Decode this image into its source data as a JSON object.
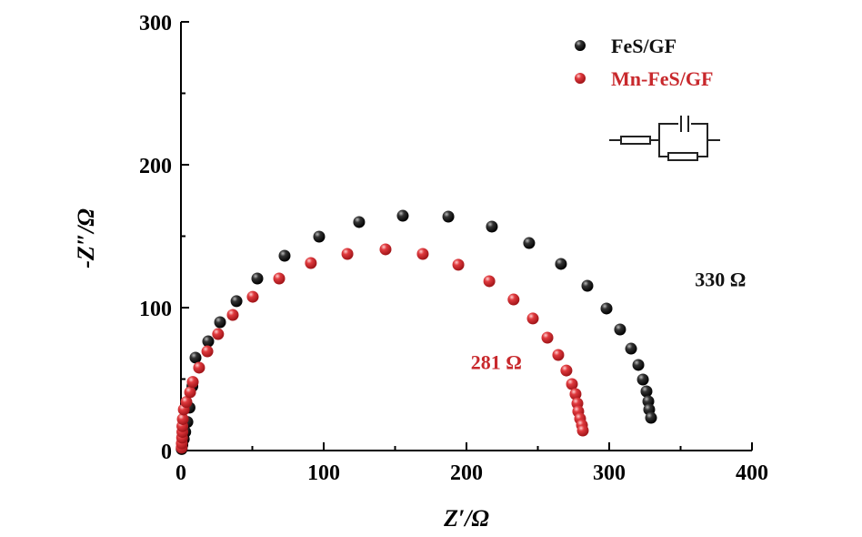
{
  "chart_data": {
    "type": "scatter",
    "title": "",
    "xlabel": "Z′/Ω",
    "ylabel": "-Z″/Ω",
    "xlim": [
      0,
      400
    ],
    "ylim": [
      0,
      300
    ],
    "xticks": [
      "0",
      "100",
      "200",
      "300",
      "400"
    ],
    "yticks": [
      "0",
      "100",
      "200",
      "300"
    ],
    "grid": false,
    "legend_position": "top-right",
    "series": [
      {
        "name": "FeS/GF",
        "color": "#111111",
        "x": [
          0.5,
          1,
          2,
          3,
          4.5,
          6,
          8,
          10.2,
          19.1,
          27.4,
          38.9,
          53.5,
          72.6,
          96.8,
          124.8,
          155.4,
          187.3,
          217.8,
          243.9,
          266.2,
          284.7,
          298.1,
          307.6,
          315.3,
          320.4,
          323.6,
          326.1,
          327.4,
          328,
          329.3
        ],
        "y": [
          1,
          4,
          8,
          13,
          20,
          30,
          45,
          65,
          76.4,
          89.8,
          104.5,
          120.4,
          136.3,
          149.7,
          159.9,
          164.3,
          163.7,
          156.7,
          145.2,
          130.6,
          115.3,
          99.4,
          84.7,
          71.3,
          59.9,
          49.7,
          41.4,
          34.4,
          28.7,
          22.9
        ]
      },
      {
        "name": "Mn-FeS/GF",
        "color": "#c8282c",
        "x": [
          0.5,
          0.6,
          0.8,
          1,
          1,
          1.3,
          2,
          3.8,
          6.4,
          8.3,
          12.7,
          18.5,
          26,
          36.3,
          50.3,
          68.8,
          91,
          116.6,
          143.3,
          169.4,
          194.3,
          216,
          233,
          246.5,
          256.7,
          264.3,
          270,
          273.9,
          276.4,
          277.7,
          278.3,
          279.6,
          280.9,
          281.5
        ],
        "y": [
          2,
          5,
          9,
          13,
          17,
          22,
          28.7,
          34,
          40.8,
          48,
          58,
          69.4,
          81.5,
          94.9,
          107.6,
          120.4,
          131.2,
          137.6,
          140.8,
          137.6,
          130,
          118.5,
          105.7,
          92.4,
          79,
          66.9,
          56,
          46.5,
          39.5,
          33,
          27.4,
          22.3,
          17.8,
          14
        ]
      }
    ],
    "annotations": [
      {
        "text": "330 Ω",
        "color": "#111111",
        "x": 360,
        "y": 115
      },
      {
        "text": "281 Ω",
        "color": "#c8282c",
        "x": 203,
        "y": 57
      }
    ],
    "inset": "equivalent-circuit"
  }
}
